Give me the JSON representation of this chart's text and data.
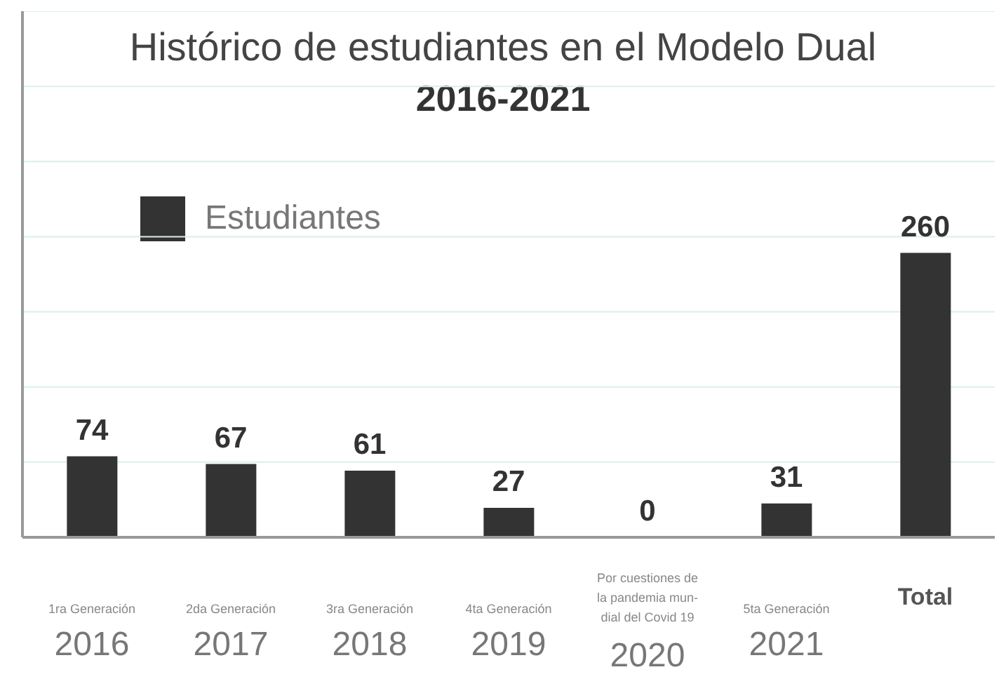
{
  "chart_data": {
    "type": "bar",
    "title": "Histórico de estudiantes en el Modelo Dual",
    "subtitle": "2016-2021",
    "categories": [
      "1ra Generación\n2016",
      "2da Generación\n2017",
      "3ra  Generación\n2018",
      "4ta Generación\n2019",
      "Por cuestiones de\nla pandemia mun-\ndial del Covid 19\n2020",
      "5ta Generación\n2021",
      "Total"
    ],
    "series": [
      {
        "name": "Estudiantes",
        "color": "#333333",
        "values": [
          74,
          67,
          61,
          27,
          0,
          31,
          260
        ]
      }
    ],
    "data_labels": true,
    "grid": true,
    "legend": "top left"
  }
}
